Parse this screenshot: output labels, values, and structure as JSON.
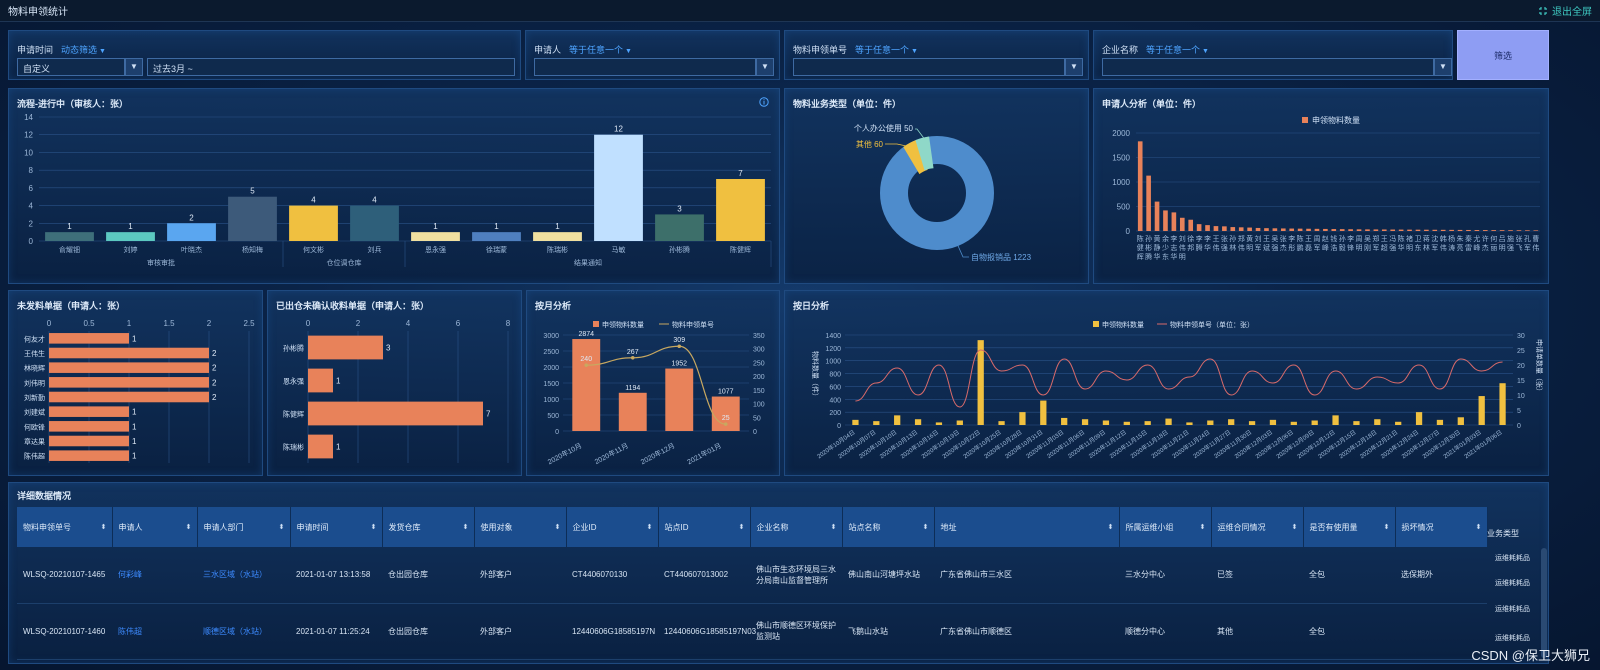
{
  "window": {
    "title": "物料申领统计",
    "exit_label": "退出全屏"
  },
  "filters": {
    "date": {
      "label": "申请时间",
      "sub": "动态筛选",
      "select_value": "自定义",
      "range_value": "过去3月 ~"
    },
    "applicant": {
      "label": "申请人",
      "sub": "等于任意一个",
      "value": ""
    },
    "order_no": {
      "label": "物料申领单号",
      "sub": "等于任意一个",
      "value": ""
    },
    "company": {
      "label": "企业名称",
      "sub": "等于任意一个",
      "value": ""
    },
    "search_label": "筛选"
  },
  "charts": {
    "process": {
      "title": "流程-进行中（审核人：张）",
      "y_ticks": [
        "0",
        "2",
        "4",
        "6",
        "8",
        "10",
        "12",
        "14"
      ],
      "groups": [
        "审核审批",
        "仓位调仓库",
        "结果通知"
      ],
      "bar_colors": [
        "#3e6f7a",
        "#5cc8c0",
        "#5aa6f0",
        "#3d5a7a",
        "#f0c040",
        "#2e5f7a",
        "#f0e0a0",
        "#4f7fbf",
        "#f0e0a0",
        "#c0e0ff",
        "#3d6f6a",
        "#f0c040"
      ]
    },
    "material_type": {
      "title": "物料业务类型（单位：件）",
      "labels": {
        "personal": "个人办公使用 50",
        "other": "其他 60",
        "reimb": "自物报销品 1223"
      }
    },
    "applicant_analysis": {
      "title": "申请人分析（单位：件）",
      "legend": "申领物料数量",
      "y_ticks": [
        "0",
        "500",
        "1000",
        "1500",
        "2000"
      ]
    },
    "unissued": {
      "title": "未发料单据（申请人：张）",
      "x_ticks": [
        "0",
        "0.5",
        "1",
        "1.5",
        "2",
        "2.5"
      ]
    },
    "pending_confirm": {
      "title": "已出仓未确认收料单据（申请人：张）",
      "x_ticks": [
        "0",
        "2",
        "4",
        "6",
        "8"
      ]
    },
    "monthly": {
      "title": "按月分析",
      "legend": [
        "申领物料数量",
        "物料申领单号"
      ],
      "y_left": [
        "0",
        "500",
        "1000",
        "1500",
        "2000",
        "2500",
        "3000"
      ],
      "y_right": [
        "0",
        "50",
        "100",
        "150",
        "200",
        "250",
        "300",
        "350"
      ]
    },
    "daily": {
      "title": "按日分析",
      "legend": [
        "申领物料数量",
        "物料申领单号（单位：张）"
      ],
      "y_left_label": "物料数量（件）",
      "y_right_label": "申请单数量（张）",
      "y_left": [
        "0",
        "200",
        "400",
        "600",
        "800",
        "1000",
        "1200",
        "1400"
      ],
      "y_right": [
        "0",
        "5",
        "10",
        "15",
        "20",
        "25",
        "30"
      ]
    }
  },
  "chart_data": [
    {
      "type": "bar",
      "title": "流程-进行中（审核人：张）",
      "categories": [
        "俞耀钿",
        "刘婷",
        "叶晓杰",
        "杨知梅",
        "何文彬",
        "刘兵",
        "恩永强",
        "徐瑞蒙",
        "陈瑞彬",
        "马敏",
        "孙彬腾",
        "陈健辉"
      ],
      "values": [
        1,
        1,
        2,
        5,
        4,
        4,
        1,
        1,
        1,
        12,
        3,
        7
      ],
      "ylim": [
        0,
        14
      ]
    },
    {
      "type": "pie",
      "title": "物料业务类型（单位：件）",
      "categories": [
        "自物报销品",
        "其他",
        "个人办公使用"
      ],
      "values": [
        1223,
        60,
        50
      ]
    },
    {
      "type": "bar",
      "title": "申请人分析（单位：件）",
      "categories": [
        "陈健辉",
        "孙彬腾",
        "黄静华",
        "余少东",
        "李志华",
        "刘伟明",
        "徐邦",
        "李腾",
        "李华",
        "王伟",
        "张强",
        "孙林",
        "郑伟",
        "黄明",
        "刘军",
        "王斌",
        "吴强",
        "张杰",
        "李彤",
        "陈鹏",
        "王磊",
        "周军",
        "赵峰",
        "钱浩",
        "孙毅",
        "李锋",
        "周明",
        "吴刚",
        "郑军",
        "王超",
        "冯强",
        "陈华",
        "褚明",
        "卫东",
        "蒋林",
        "沈军",
        "韩伟",
        "杨涛",
        "朱亮",
        "秦雷",
        "尤峰",
        "许杰",
        "何丽",
        "吕明",
        "施强",
        "张飞",
        "孔军",
        "曹伟"
      ],
      "values": [
        1830,
        1130,
        600,
        420,
        380,
        270,
        230,
        140,
        120,
        100,
        95,
        80,
        75,
        70,
        62,
        58,
        55,
        52,
        50,
        48,
        46,
        44,
        42,
        40,
        38,
        36,
        34,
        33,
        32,
        31,
        30,
        29,
        28,
        27,
        26,
        25,
        24,
        23,
        22,
        21,
        20,
        19,
        18,
        17,
        16,
        15,
        14,
        13
      ],
      "ylim": [
        0,
        2000
      ]
    },
    {
      "type": "bar",
      "title": "未发料单据（申请人：张）",
      "categories": [
        "何友才",
        "王伟生",
        "林晓辉",
        "刘伟明",
        "刘新勤",
        "刘建斌",
        "何欧锋",
        "章达果",
        "陈伟超"
      ],
      "values": [
        1,
        2,
        2,
        2,
        2,
        1,
        1,
        1,
        1
      ],
      "xlim": [
        0,
        2.5
      ]
    },
    {
      "type": "bar",
      "title": "已出仓未确认收料单据（申请人：张）",
      "categories": [
        "孙彬腾",
        "恩永强",
        "陈健辉",
        "陈瑞彬"
      ],
      "values": [
        3,
        1,
        7,
        1
      ],
      "xlim": [
        0,
        8
      ]
    },
    {
      "type": "bar",
      "title": "按月分析",
      "categories": [
        "2020年10月",
        "2020年11月",
        "2020年12月",
        "2021年01月"
      ],
      "series": [
        {
          "name": "申领物料数量",
          "values": [
            2874,
            1194,
            1952,
            1077
          ]
        },
        {
          "name": "物料申领单号",
          "values": [
            240,
            267,
            309,
            25
          ]
        }
      ],
      "ylim": [
        0,
        3000
      ]
    },
    {
      "type": "bar",
      "title": "按日分析",
      "x": [
        "2020年10月04日",
        "2020年10月07日",
        "2020年10月10日",
        "2020年10月13日",
        "2020年10月16日",
        "2020年10月19日",
        "2020年10月22日",
        "2020年10月25日",
        "2020年10月28日",
        "2020年10月31日",
        "2020年11月03日",
        "2020年11月06日",
        "2020年11月09日",
        "2020年11月12日",
        "2020年11月15日",
        "2020年11月18日",
        "2020年11月21日",
        "2020年11月24日",
        "2020年11月27日",
        "2020年11月30日",
        "2020年12月03日",
        "2020年12月06日",
        "2020年12月09日",
        "2020年12月12日",
        "2020年12月15日",
        "2020年12月18日",
        "2020年12月21日",
        "2020年12月24日",
        "2020年12月27日",
        "2020年12月30日",
        "2021年01月03日",
        "2021年01月06日"
      ],
      "series": [
        {
          "name": "申领物料数量",
          "values": [
            80,
            60,
            150,
            90,
            40,
            70,
            1320,
            60,
            200,
            380,
            110,
            90,
            70,
            50,
            60,
            100,
            40,
            70,
            90,
            60,
            80,
            50,
            70,
            150,
            60,
            90,
            50,
            200,
            80,
            120,
            450,
            650
          ]
        },
        {
          "name": "物料申领单号（单位：张）",
          "values": [
            8,
            14,
            19,
            10,
            20,
            6,
            25,
            18,
            20,
            10,
            22,
            12,
            18,
            15,
            20,
            12,
            16,
            22,
            10,
            18,
            14,
            20,
            10,
            18,
            12,
            16,
            14,
            20,
            12,
            22,
            18,
            21
          ]
        }
      ],
      "ylim": [
        0,
        1400
      ]
    }
  ],
  "detail": {
    "title": "详细数据情况",
    "headers": [
      "物料申领单号",
      "申请人",
      "申请人部门",
      "申请时间",
      "发货仓库",
      "使用对象",
      "企业ID",
      "站点ID",
      "企业名称",
      "站点名称",
      "地址",
      "所属运维小组",
      "运维合同情况",
      "是否有使用量",
      "损坏情况",
      "业务类型"
    ],
    "rows": [
      [
        "WLSQ-20210107-1465",
        "何彩峰",
        "三水区域（水站）",
        "2021-01-07 13:13:58",
        "仓出园仓库",
        "外部客户",
        "CT4406070130",
        "CT440607013002",
        "佛山市生态环境局三水分局南山监督管理所",
        "佛山南山河塘坪水站",
        "广东省佛山市三水区",
        "三水分中心",
        "已签",
        "全包",
        "选保期外"
      ],
      [
        "WLSQ-20210107-1460",
        "陈伟超",
        "顺德区域（水站）",
        "2021-01-07 11:25:24",
        "仓出园仓库",
        "外部客户",
        "12440606G18585197N",
        "12440606G18585197N03",
        "佛山市顺德区环境保护监测站",
        "飞鹅山水站",
        "广东省佛山市顺德区",
        "顺德分中心",
        "其他",
        "全包",
        ""
      ]
    ],
    "biz_types": [
      "运维耗耗品",
      "运维耗耗品",
      "运维耗耗品",
      "运维耗耗品"
    ]
  },
  "watermark": "CSDN @保卫大狮兄"
}
